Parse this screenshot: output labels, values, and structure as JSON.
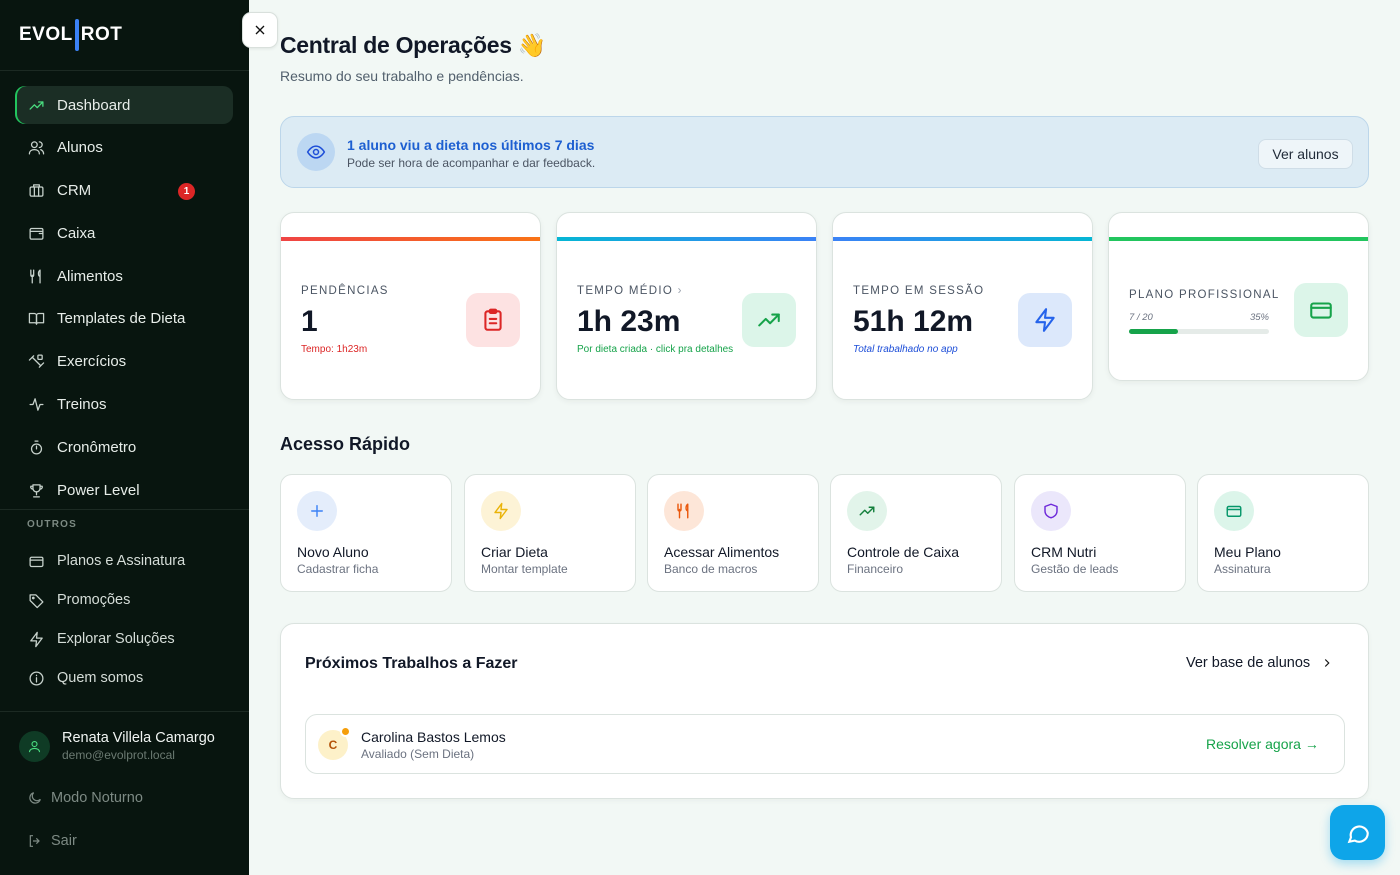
{
  "sidebar": {
    "logo": "EVOLPROT",
    "logo_left": "EVOL",
    "logo_right": "ROT",
    "items": [
      {
        "label": "Dashboard",
        "icon": "trending-up-icon",
        "active": true
      },
      {
        "label": "Alunos",
        "icon": "users-icon"
      },
      {
        "label": "CRM",
        "icon": "briefcase-icon",
        "badge": "1"
      },
      {
        "label": "Caixa",
        "icon": "wallet-icon"
      },
      {
        "label": "Alimentos",
        "icon": "utensils-icon"
      },
      {
        "label": "Templates de Dieta",
        "icon": "book-icon"
      },
      {
        "label": "Exercícios",
        "icon": "dumbbell-icon"
      },
      {
        "label": "Treinos",
        "icon": "activity-icon"
      },
      {
        "label": "Cronômetro",
        "icon": "timer-icon"
      },
      {
        "label": "Power Level",
        "icon": "trophy-icon"
      }
    ],
    "section_label": "OUTROS",
    "other_items": [
      {
        "label": "Planos e Assinatura",
        "icon": "credit-card-icon"
      },
      {
        "label": "Promoções",
        "icon": "tag-icon"
      },
      {
        "label": "Explorar Soluções",
        "icon": "zap-icon"
      },
      {
        "label": "Quem somos",
        "icon": "info-icon"
      }
    ],
    "user": {
      "name": "Renata Villela Camargo",
      "email": "demo@evolprot.local"
    },
    "night_mode": "Modo Noturno",
    "logout": "Sair"
  },
  "header": {
    "title": "Central de Operações 👋",
    "subtitle": "Resumo do seu trabalho e pendências."
  },
  "banner": {
    "title": "1 aluno viu a dieta nos últimos 7 dias",
    "text": "Pode ser hora de acompanhar e dar feedback.",
    "button": "Ver alunos"
  },
  "stats": [
    {
      "label": "PENDÊNCIAS",
      "value": "1",
      "note": "Tempo: 1h23m",
      "color": "#ef4444"
    },
    {
      "label": "TEMPO MÉDIO",
      "value": "1h 23m",
      "note": "Por dieta criada · click pra detalhes",
      "color": "#06b6d4"
    },
    {
      "label": "TEMPO EM SESSÃO",
      "value": "51h 12m",
      "note": "Total trabalhado no app",
      "color": "#3b82f6"
    },
    {
      "label": "PLANO PROFISSIONAL",
      "usage": "7 / 20",
      "percent": "35%",
      "progress": 0.35,
      "color": "#22c55e"
    }
  ],
  "quick_access": {
    "title": "Acesso Rápido",
    "items": [
      {
        "title": "Novo Aluno",
        "subtitle": "Cadastrar ficha"
      },
      {
        "title": "Criar Dieta",
        "subtitle": "Montar template"
      },
      {
        "title": "Acessar Alimentos",
        "subtitle": "Banco de macros"
      },
      {
        "title": "Controle de Caixa",
        "subtitle": "Financeiro"
      },
      {
        "title": "CRM Nutri",
        "subtitle": "Gestão de leads"
      },
      {
        "title": "Meu Plano",
        "subtitle": "Assinatura"
      }
    ]
  },
  "tasks": {
    "title": "Próximos Trabalhos a Fazer",
    "link": "Ver base de alunos",
    "rows": [
      {
        "initial": "C",
        "name": "Carolina Bastos Lemos",
        "status": "Avaliado (Sem Dieta)",
        "action": "Resolver agora →"
      }
    ]
  }
}
